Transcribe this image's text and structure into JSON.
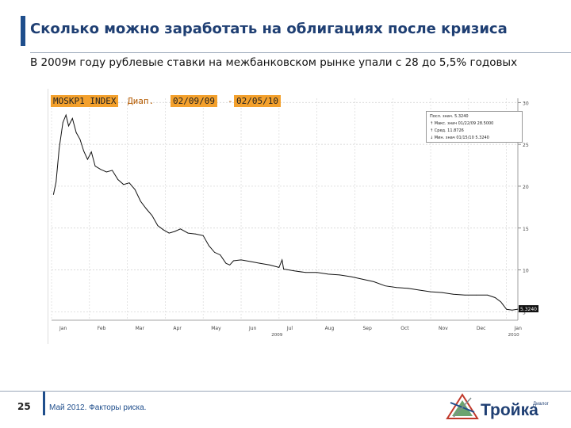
{
  "slide": {
    "title": "Сколько можно заработать на облигациях после кризиса",
    "subtitle": "В 2009м году рублевые ставки на межбанковском рынке упали с 28 до 5,5% годовых",
    "page_number": "25",
    "footer_text": "Май 2012. Факторы риска.",
    "logo_text": "Тройка",
    "logo_sub": "Диалог",
    "accent_color": "#1f4e8c"
  },
  "chart_header": {
    "ticker": "MOSKP1 INDEX",
    "range_label": "Диап.",
    "range_from": "02/09/09",
    "range_sep": "-",
    "range_to": "02/05/10"
  },
  "legend": {
    "rows": [
      "Посл. знач.   5.3240",
      "↑ Макс. знач 01/22/09  28.5000",
      "↑ Сред.              11.8726",
      "↓ Мин. знач  01/15/10  5.3240"
    ]
  },
  "chart_data": {
    "type": "line",
    "x_tick_labels": [
      "Jan",
      "Feb",
      "Mar",
      "Apr",
      "May",
      "Jun",
      "Jul",
      "Aug",
      "Sep",
      "Oct",
      "Nov",
      "Dec",
      "Jan"
    ],
    "x_year_labels": [
      "2009",
      "2010"
    ],
    "y_tick_labels": [
      "30",
      "25",
      "20",
      "15",
      "10",
      "5"
    ],
    "ylim": [
      4,
      30.5
    ],
    "last_value_label": "5.3240",
    "line_color": "#111111",
    "grid": true,
    "series": [
      {
        "values": [
          [
            0.05,
            19.0
          ],
          [
            0.12,
            20.5
          ],
          [
            0.2,
            24.5
          ],
          [
            0.3,
            27.6
          ],
          [
            0.38,
            28.5
          ],
          [
            0.45,
            27.2
          ],
          [
            0.55,
            28.1
          ],
          [
            0.65,
            26.4
          ],
          [
            0.75,
            25.6
          ],
          [
            0.85,
            24.2
          ],
          [
            0.95,
            23.2
          ],
          [
            1.05,
            24.1
          ],
          [
            1.15,
            22.4
          ],
          [
            1.3,
            22.0
          ],
          [
            1.45,
            21.7
          ],
          [
            1.6,
            21.9
          ],
          [
            1.75,
            20.8
          ],
          [
            1.9,
            20.2
          ],
          [
            2.05,
            20.4
          ],
          [
            2.2,
            19.6
          ],
          [
            2.35,
            18.2
          ],
          [
            2.5,
            17.3
          ],
          [
            2.65,
            16.5
          ],
          [
            2.8,
            15.3
          ],
          [
            2.95,
            14.8
          ],
          [
            3.1,
            14.4
          ],
          [
            3.25,
            14.6
          ],
          [
            3.4,
            14.9
          ],
          [
            3.6,
            14.4
          ],
          [
            3.8,
            14.3
          ],
          [
            4.0,
            14.1
          ],
          [
            4.15,
            12.9
          ],
          [
            4.3,
            12.1
          ],
          [
            4.45,
            11.8
          ],
          [
            4.6,
            10.8
          ],
          [
            4.7,
            10.6
          ],
          [
            4.8,
            11.1
          ],
          [
            5.0,
            11.2
          ],
          [
            5.25,
            11.0
          ],
          [
            5.5,
            10.8
          ],
          [
            5.75,
            10.6
          ],
          [
            6.0,
            10.3
          ],
          [
            6.08,
            11.2
          ],
          [
            6.12,
            10.1
          ],
          [
            6.4,
            9.9
          ],
          [
            6.7,
            9.7
          ],
          [
            7.0,
            9.7
          ],
          [
            7.3,
            9.5
          ],
          [
            7.6,
            9.4
          ],
          [
            7.9,
            9.2
          ],
          [
            8.2,
            8.9
          ],
          [
            8.5,
            8.6
          ],
          [
            8.8,
            8.1
          ],
          [
            9.1,
            7.9
          ],
          [
            9.4,
            7.8
          ],
          [
            9.7,
            7.6
          ],
          [
            10.0,
            7.4
          ],
          [
            10.3,
            7.3
          ],
          [
            10.6,
            7.1
          ],
          [
            10.9,
            7.0
          ],
          [
            11.2,
            7.0
          ],
          [
            11.5,
            7.0
          ],
          [
            11.7,
            6.7
          ],
          [
            11.85,
            6.2
          ],
          [
            12.0,
            5.3
          ],
          [
            12.15,
            5.2
          ],
          [
            12.3,
            5.32
          ]
        ]
      }
    ]
  }
}
